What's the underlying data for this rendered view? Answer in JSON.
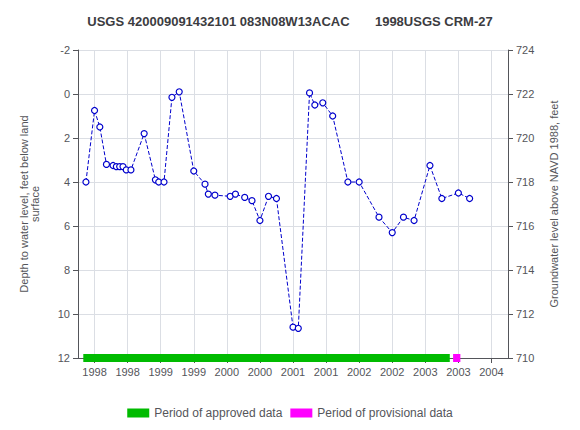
{
  "chart_data": {
    "type": "line",
    "title": "USGS 420009091432101 083N08W13ACAC       1998USGS CRM-27",
    "ylabel": "Depth to water level, feet below land\nsurface",
    "y2label": "Groundwater level above NAVD 1988, feet",
    "xlim": [
      1997.75,
      2004.25
    ],
    "xticks": [
      1998,
      {
        "value": 1998.5,
        "label": "1998"
      },
      1999,
      {
        "value": 1999.5,
        "label": "1999"
      },
      2000,
      {
        "value": 2000.5,
        "label": "2000"
      },
      2001,
      {
        "value": 2001.5,
        "label": "2001"
      },
      2002,
      {
        "value": 2002.5,
        "label": "2002"
      },
      2003,
      {
        "value": 2003.5,
        "label": "2003"
      },
      2004
    ],
    "ylim": [
      12,
      -2
    ],
    "yticks": [
      -2,
      0,
      2,
      4,
      6,
      8,
      10,
      12
    ],
    "y2lim": [
      710,
      724
    ],
    "y2ticks": [
      710,
      712,
      714,
      716,
      718,
      720,
      722,
      724
    ],
    "grid": true,
    "legend": "bottom",
    "series": [
      {
        "color": "#0000cc",
        "line_style": "dashed",
        "marker": "open_circle",
        "x": [
          1997.87,
          1998.0,
          1998.08,
          1998.18,
          1998.28,
          1998.33,
          1998.38,
          1998.43,
          1998.48,
          1998.55,
          1998.75,
          1998.92,
          1998.97,
          1999.05,
          1999.17,
          1999.28,
          1999.5,
          1999.67,
          1999.72,
          1999.82,
          2000.05,
          2000.13,
          2000.27,
          2000.38,
          2000.5,
          2000.63,
          2000.75,
          2001.0,
          2001.08,
          2001.25,
          2001.33,
          2001.45,
          2001.6,
          2001.83,
          2002.0,
          2002.3,
          2002.5,
          2002.67,
          2002.83,
          2003.07,
          2003.25,
          2003.5,
          2003.67
        ],
        "values": [
          4.0,
          0.75,
          1.5,
          3.2,
          3.25,
          3.3,
          3.3,
          3.3,
          3.45,
          3.45,
          1.8,
          3.9,
          4.0,
          4.0,
          0.15,
          -0.1,
          3.5,
          4.1,
          4.55,
          4.6,
          4.65,
          4.55,
          4.7,
          4.85,
          5.75,
          4.65,
          4.75,
          10.6,
          10.65,
          -0.05,
          0.5,
          0.4,
          1.0,
          4.0,
          4.0,
          5.6,
          6.3,
          5.6,
          5.75,
          3.25,
          4.75,
          4.5,
          4.75
        ]
      },
      {
        "name": "Period of approved data",
        "type": "range",
        "color": "#00bb00",
        "x": [
          1997.83,
          2003.37
        ],
        "values": [
          12.0,
          12.0
        ]
      },
      {
        "name": "Period of provisional data",
        "type": "range",
        "color": "#ff00ff",
        "x": [
          2003.42,
          2003.53
        ],
        "values": [
          12.0,
          12.0
        ]
      }
    ]
  }
}
